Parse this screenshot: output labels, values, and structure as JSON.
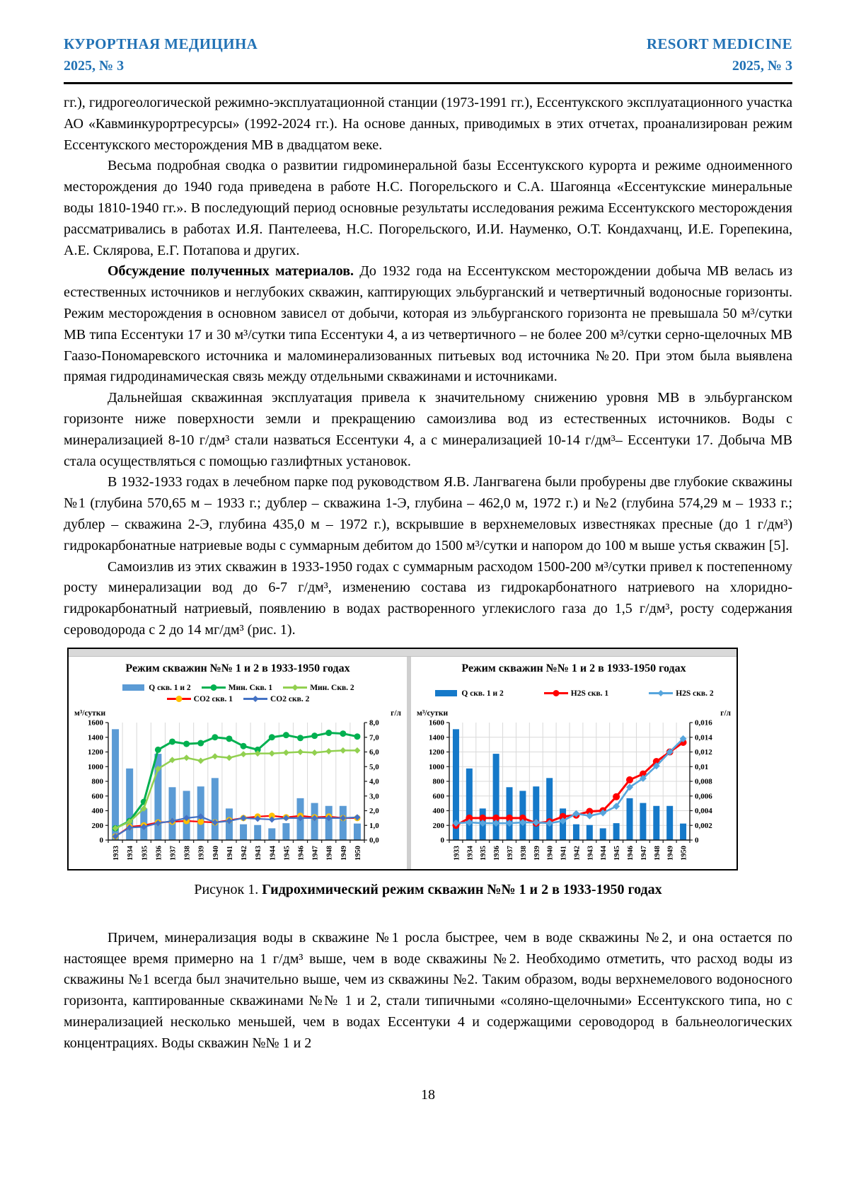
{
  "page": {
    "number": "18"
  },
  "header": {
    "journal_ru": "КУРОРТНАЯ МЕДИЦИНА",
    "issue_ru": "2025, № 3",
    "journal_en": "RESORT MEDICINE",
    "issue_en": "2025, № 3",
    "accent_color": "#2272B5"
  },
  "body": {
    "paragraphs_top": [
      {
        "indent": false,
        "runs": [
          {
            "text": "гг.), гидрогеологической режимно-эксплуатационной станции (1973-1991 гг.), Ессентукского эксплуатационного участка АО «Кавминкурортресурсы» (1992-2024 гг.). На основе данных, приводимых в этих отчетах, проанализирован режим Ессентукского месторождения МВ в двадцатом веке.",
            "bold": false
          }
        ]
      },
      {
        "indent": true,
        "runs": [
          {
            "text": "Весьма подробная сводка о развитии гидроминеральной базы Ессентукского курорта и режиме одноименного месторождения до 1940 года приведена в работе Н.С. Погорельского и С.А. Шагоянца «Ессентукские минеральные воды 1810-1940 гг.». В последующий период основные результаты исследования режима Ессентукского месторождения рассматривались в работах И.Я. Пантелеева, Н.С. Погорельского, И.И. Науменко, О.Т. Кондахчанц, И.Е. Горепекина, А.Е. Склярова, Е.Г. Потапова и других.",
            "bold": false
          }
        ]
      },
      {
        "indent": true,
        "runs": [
          {
            "text": "Обсуждение полученных материалов.",
            "bold": true
          },
          {
            "text": " До 1932 года на Ессентукском месторождении добыча МВ велась из естественных источников и неглубоких скважин, каптирующих эльбурганский и четвертичный водоносные горизонты. Режим месторождения в основном зависел от добычи, которая из эльбурганского горизонта не превышала 50 м³/сутки МВ типа Ессентуки 17 и 30 м³/сутки типа Ессентуки 4, а из четвертичного – не более 200 м³/сутки серно-щелочных МВ Гаазо-Пономаревского источника и маломинерализованных питьевых вод источника №20. При этом была выявлена прямая гидродинамическая связь между отдельными скважинами и источниками.",
            "bold": false
          }
        ]
      },
      {
        "indent": true,
        "runs": [
          {
            "text": "Дальнейшая скважинная эксплуатация привела к значительному снижению уровня МВ в эльбурганском горизонте ниже поверхности земли и прекращению самоизлива вод из естественных источников. Воды с минерализацией 8-10 г/дм³ стали назваться Ессентуки 4, а с минерализацией 10-14 г/дм³– Ессентуки 17. Добыча МВ стала осуществляться с помощью газлифтных установок.",
            "bold": false
          }
        ]
      },
      {
        "indent": true,
        "runs": [
          {
            "text": "В 1932-1933 годах в лечебном парке под руководством Я.В. Лангвагена были пробурены две глубокие скважины №1 (глубина 570,65 м – 1933 г.; дублер – скважина 1-Э, глубина – 462,0 м, 1972 г.) и №2 (глубина 574,29 м – 1933 г.; дублер – скважина 2-Э, глубина 435,0 м – 1972 г.), вскрывшие в верхнемеловых известняках пресные (до 1 г/дм³) гидрокарбонатные натриевые воды с суммарным дебитом до 1500 м³/сутки и напором до 100 м выше устья скважин [5].",
            "bold": false
          }
        ]
      },
      {
        "indent": true,
        "runs": [
          {
            "text": "Самоизлив из этих скважин в 1933-1950 годах с суммарным расходом 1500-200 м³/сутки привел к постепенному росту минерализации вод до 6-7 г/дм³, изменению состава из гидрокарбонатного натриевого на хлоридно-гидрокарбонатный натриевый, появлению в водах растворенного углекислого газа до 1,5 г/дм³, росту содержания сероводорода с 2 до 14 мг/дм³ (рис. 1).",
            "bold": false
          }
        ]
      }
    ],
    "paragraphs_bottom": [
      {
        "indent": true,
        "runs": [
          {
            "text": "Причем, минерализация воды в скважине №1 росла быстрее, чем в воде скважины №2, и она остается по настоящее время примерно на 1 г/дм³ выше, чем в воде скважины №2. Необходимо отметить, что расход воды из скважины №1 всегда был значительно выше, чем из скважины №2. Таким образом, воды верхнемелового водоносного горизонта, каптированные скважинами №№ 1 и 2, стали типичными «соляно-щелочными» Ессентукского типа, но с минерализацией несколько меньшей, чем в водах Ессентуки 4 и содержащими сероводород в бальнеологических концентрациях. Воды скважин №№ 1 и 2",
            "bold": false
          }
        ]
      }
    ]
  },
  "figure": {
    "caption_prefix": "Рисунок 1. ",
    "caption_bold": "Гидрохимический режим скважин №№ 1 и 2 в 1933-1950 годах"
  },
  "chart_data": [
    {
      "type": "bar",
      "title": "Режим скважин №№ 1 и 2 в 1933-1950 годах",
      "categories": [
        "1933",
        "1934",
        "1935",
        "1936",
        "1937",
        "1938",
        "1939",
        "1940",
        "1941",
        "1942",
        "1943",
        "1944",
        "1945",
        "1946",
        "1947",
        "1948",
        "1949",
        "1950"
      ],
      "left_axis": {
        "label": "м³/сутки",
        "min": 0,
        "max": 1600,
        "step": 200,
        "ticks": [
          "1600",
          "1400",
          "1200",
          "1000",
          "800",
          "600",
          "400",
          "200",
          "0"
        ]
      },
      "right_axis": {
        "label": "г/л",
        "min": 0,
        "max": 8,
        "step": 1,
        "ticks": [
          "8,0",
          "7,0",
          "6,0",
          "5,0",
          "4,0",
          "3,0",
          "2,0",
          "1,0",
          "0,0"
        ]
      },
      "grid": {
        "vertical": true,
        "horizontal": false
      },
      "legend_rows": [
        [
          0,
          1,
          2
        ],
        [
          3,
          4
        ]
      ],
      "legend_spread": false,
      "series": [
        {
          "name": "Q скв. 1 и 2",
          "type": "bar",
          "axis": "left",
          "color": "#5B9BD5",
          "values": [
            1510,
            975,
            430,
            1175,
            720,
            670,
            730,
            845,
            430,
            215,
            205,
            160,
            230,
            570,
            505,
            465,
            465,
            225
          ]
        },
        {
          "name": "Мин. Скв. 1",
          "type": "line",
          "axis": "right",
          "color": "#00B050",
          "marker": "circle",
          "marker_color": "#00B050",
          "width": 3,
          "values": [
            0.8,
            1.3,
            2.6,
            6.15,
            6.7,
            6.55,
            6.6,
            7.0,
            6.9,
            6.4,
            6.15,
            7.0,
            7.15,
            6.95,
            7.1,
            7.3,
            7.25,
            7.05
          ]
        },
        {
          "name": "Мин. Скв. 2",
          "type": "line",
          "axis": "right",
          "color": "#92D050",
          "marker": "diamond",
          "marker_color": "#92D050",
          "width": 2.5,
          "values": [
            0.8,
            1.25,
            2.15,
            4.85,
            5.45,
            5.6,
            5.4,
            5.7,
            5.6,
            5.85,
            5.9,
            5.9,
            5.95,
            6.0,
            5.95,
            6.05,
            6.1,
            6.1
          ]
        },
        {
          "name": "CO2 скв. 1",
          "type": "line",
          "axis": "right",
          "color": "#FF0000",
          "marker": "circle",
          "marker_color": "#FFC000",
          "width": 2.2,
          "values": [
            0.25,
            0.9,
            1.0,
            1.2,
            1.25,
            1.3,
            1.25,
            1.2,
            1.35,
            1.5,
            1.6,
            1.65,
            1.55,
            1.65,
            1.55,
            1.6,
            1.5,
            1.5
          ]
        },
        {
          "name": "CO2 скв. 2",
          "type": "line",
          "axis": "right",
          "color": "#4472C4",
          "marker": "diamond",
          "marker_color": "#4472C4",
          "width": 2.2,
          "values": [
            0.25,
            0.85,
            0.9,
            1.15,
            1.3,
            1.5,
            1.6,
            1.2,
            1.3,
            1.5,
            1.45,
            1.4,
            1.5,
            1.5,
            1.5,
            1.5,
            1.5,
            1.55
          ]
        }
      ]
    },
    {
      "type": "bar",
      "title": "Режим скважин №№ 1 и 2 в 1933-1950 годах",
      "categories": [
        "1933",
        "1934",
        "1935",
        "1936",
        "1937",
        "1938",
        "1939",
        "1940",
        "1941",
        "1942",
        "1943",
        "1944",
        "1945",
        "1946",
        "1947",
        "1948",
        "1949",
        "1950"
      ],
      "left_axis": {
        "label": "м³/сутки",
        "min": 0,
        "max": 1600,
        "step": 200,
        "ticks": [
          "1600",
          "1400",
          "1200",
          "1000",
          "800",
          "600",
          "400",
          "200",
          "0"
        ]
      },
      "right_axis": {
        "label": "г/л",
        "min": 0,
        "max": 0.016,
        "step": 0.002,
        "ticks": [
          "0,016",
          "0,014",
          "0,012",
          "0,01",
          "0,008",
          "0,006",
          "0,004",
          "0,002",
          "0"
        ]
      },
      "grid": {
        "vertical": true,
        "horizontal": true
      },
      "legend_rows": [
        [
          0,
          1,
          2
        ]
      ],
      "legend_spread": true,
      "series": [
        {
          "name": "Q скв. 1 и 2",
          "type": "bar",
          "axis": "left",
          "color": "#1579C9",
          "values": [
            1510,
            975,
            430,
            1175,
            720,
            670,
            730,
            845,
            430,
            215,
            205,
            160,
            230,
            570,
            505,
            465,
            465,
            225
          ]
        },
        {
          "name": "H2S скв. 1",
          "type": "line",
          "axis": "right",
          "color": "#FF0000",
          "marker": "circle",
          "marker_color": "#FF0000",
          "width": 3,
          "values": [
            0.002,
            0.003,
            0.003,
            0.003,
            0.003,
            0.003,
            0.0023,
            0.0025,
            0.0032,
            0.0034,
            0.0039,
            0.004,
            0.0059,
            0.0082,
            0.009,
            0.0107,
            0.012,
            0.0133
          ]
        },
        {
          "name": "H2S скв. 2",
          "type": "line",
          "axis": "right",
          "color": "#56A5DD",
          "marker": "diamond",
          "marker_color": "#56A5DD",
          "width": 2.6,
          "values": [
            0.0023,
            0.0024,
            0.0023,
            0.0023,
            0.0023,
            0.0024,
            0.0024,
            0.0023,
            0.0026,
            0.0036,
            0.0033,
            0.0037,
            0.0046,
            0.0072,
            0.0084,
            0.0101,
            0.012,
            0.0138
          ]
        }
      ]
    }
  ]
}
